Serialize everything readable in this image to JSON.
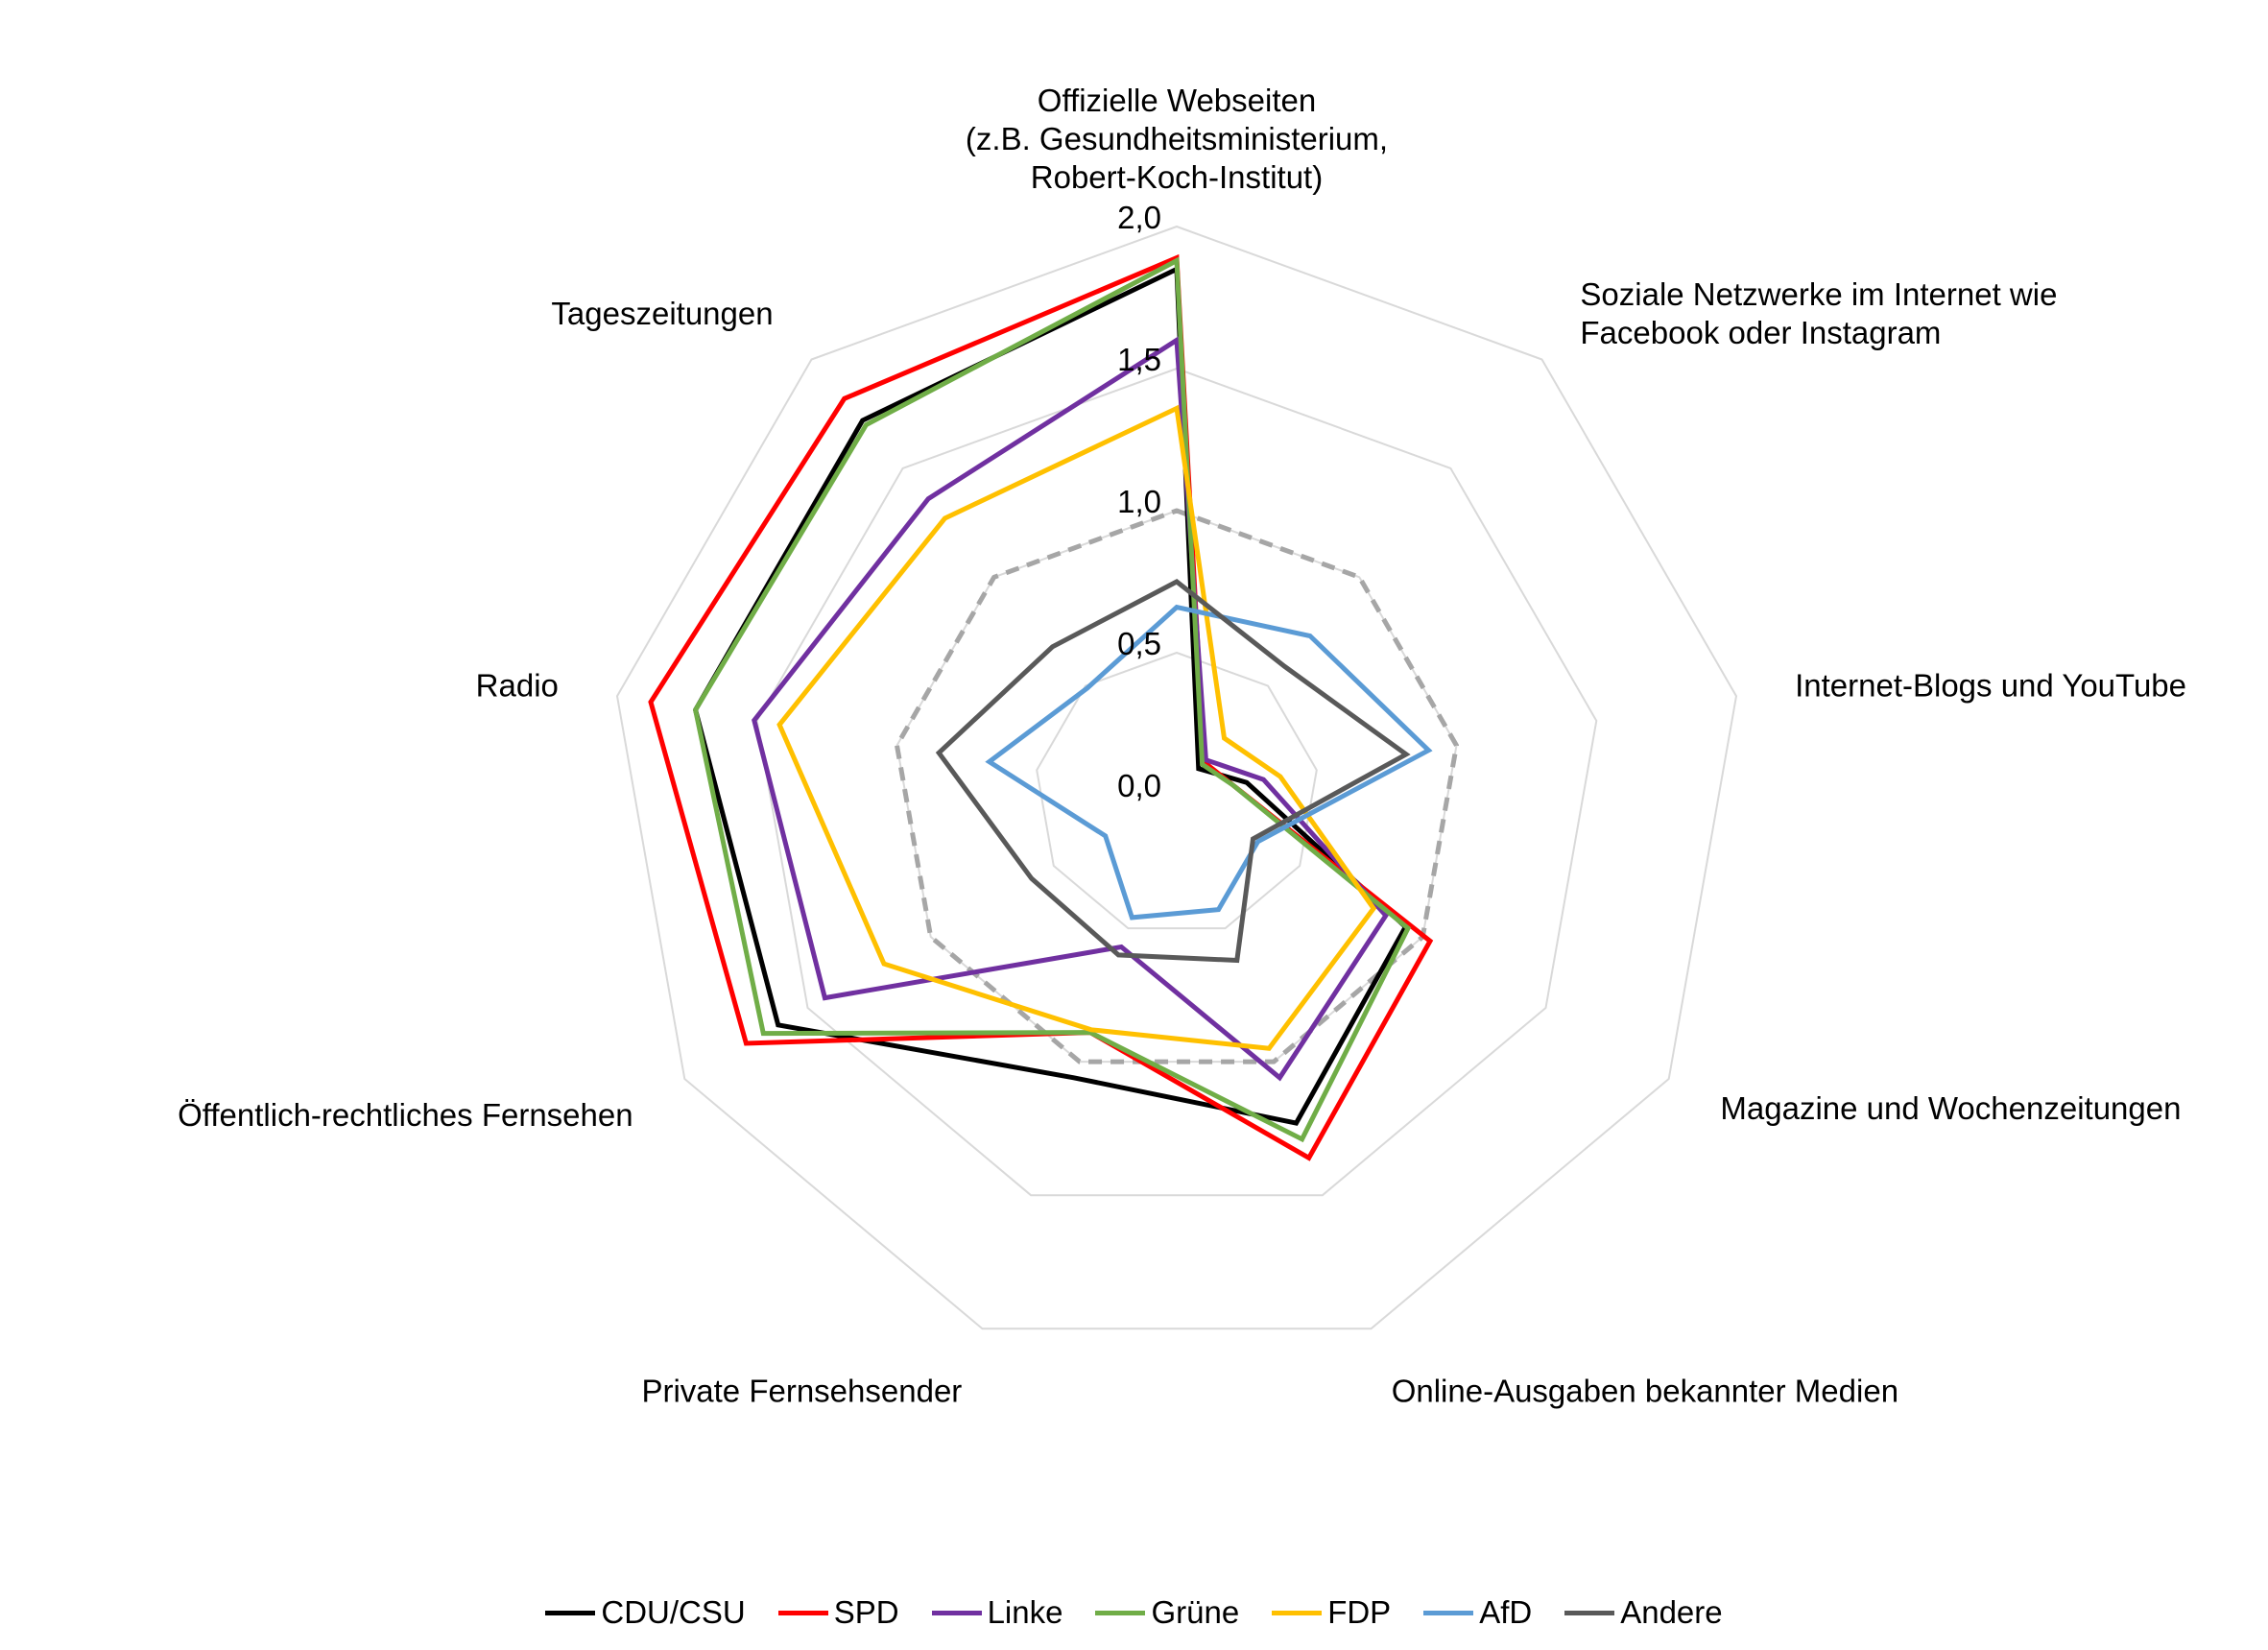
{
  "chart_data": {
    "type": "radar",
    "categories": [
      [
        "Offizielle Webseiten",
        "(z.B. Gesundheitsministerium,",
        "Robert-Koch-Institut)"
      ],
      [
        "Soziale Netzwerke im Internet wie",
        "Facebook oder Instagram"
      ],
      [
        "Internet-Blogs und YouTube"
      ],
      [
        "Magazine und Wochenzeitungen"
      ],
      [
        "Online-Ausgaben bekannter Medien"
      ],
      [
        "Private Fernsehsender"
      ],
      [
        "Öffentlich-rechtliches Fernsehen"
      ],
      [
        "Radio"
      ],
      [
        "Tageszeitungen"
      ]
    ],
    "ticks": [
      "0,0",
      "0,5",
      "1,0",
      "1,5",
      "2,0"
    ],
    "rmin": 0,
    "rmax": 2.0,
    "reference": {
      "values": [
        1,
        1,
        1,
        1,
        1,
        1,
        1,
        1,
        1
      ],
      "color": "#a6a6a6",
      "dashed": true
    },
    "series": [
      {
        "name": "CDU/CSU",
        "color": "#000000",
        "values": [
          1.85,
          0.12,
          0.25,
          0.93,
          1.23,
          1.06,
          1.62,
          1.72,
          1.72
        ]
      },
      {
        "name": "SPD",
        "color": "#ff0000",
        "values": [
          1.89,
          0.15,
          0.2,
          1.03,
          1.36,
          0.89,
          1.75,
          1.88,
          1.82
        ]
      },
      {
        "name": "Linke",
        "color": "#7030a0",
        "values": [
          1.6,
          0.16,
          0.31,
          0.85,
          1.06,
          0.57,
          1.43,
          1.51,
          1.36
        ]
      },
      {
        "name": "Grüne",
        "color": "#70ad47",
        "values": [
          1.88,
          0.14,
          0.2,
          0.94,
          1.29,
          0.89,
          1.68,
          1.72,
          1.7
        ]
      },
      {
        "name": "FDP",
        "color": "#ffc000",
        "values": [
          1.36,
          0.26,
          0.37,
          0.8,
          0.95,
          0.88,
          1.19,
          1.42,
          1.27
        ]
      },
      {
        "name": "AfD",
        "color": "#5b9bd5",
        "values": [
          0.66,
          0.73,
          0.9,
          0.33,
          0.43,
          0.46,
          0.29,
          0.67,
          0.49
        ]
      },
      {
        "name": "Andere",
        "color": "#595959",
        "values": [
          0.75,
          0.59,
          0.82,
          0.31,
          0.62,
          0.6,
          0.59,
          0.85,
          0.68
        ]
      }
    ],
    "grid": true,
    "legend": "bottom"
  }
}
